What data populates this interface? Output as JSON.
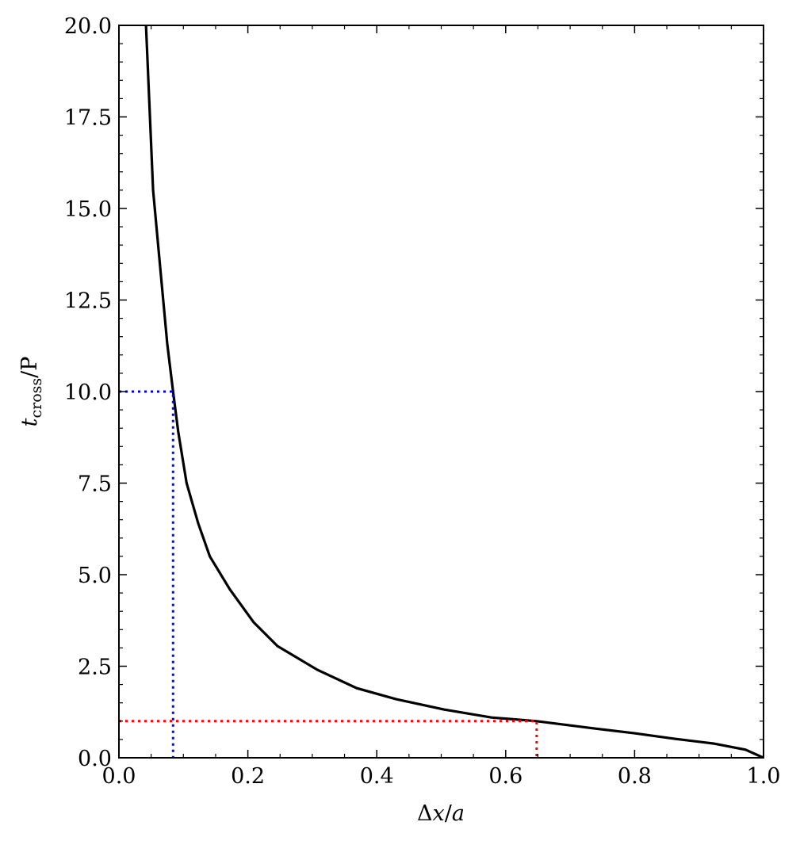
{
  "chart_data": {
    "type": "line",
    "xlabel": [
      "Δ",
      "x",
      "/",
      "a"
    ],
    "ylabel": [
      "t",
      "cross",
      "/P"
    ],
    "series": [
      {
        "color": "#000000",
        "linestyle": "solid",
        "x": [
          0.042,
          0.053,
          0.065,
          0.075,
          0.084,
          0.092,
          0.105,
          0.123,
          0.141,
          0.172,
          0.209,
          0.246,
          0.308,
          0.369,
          0.43,
          0.504,
          0.578,
          0.648,
          0.738,
          0.8,
          0.861,
          0.922,
          0.972,
          1.0
        ],
        "values": [
          20,
          15.5,
          13.2,
          11.3,
          10,
          8.9,
          7.5,
          6.4,
          5.5,
          4.6,
          3.7,
          3.05,
          2.4,
          1.9,
          1.6,
          1.32,
          1.1,
          1.0,
          0.8,
          0.67,
          0.52,
          0.39,
          0.22,
          0
        ]
      },
      {
        "color": "#0000ff",
        "linestyle": "dotted",
        "x": [
          0,
          0.084,
          0.084
        ],
        "values": [
          10,
          10,
          0
        ]
      },
      {
        "color": "#ff0000",
        "linestyle": "dotted",
        "x": [
          0,
          0.648,
          0.648
        ],
        "values": [
          1,
          1,
          0
        ]
      }
    ],
    "xlim": [
      0,
      1
    ],
    "ylim": [
      0,
      20
    ],
    "xticks": [
      {
        "value": 0,
        "label": "0.0"
      },
      0.2,
      0.4,
      0.6,
      0.8,
      {
        "value": 1,
        "label": "1.0"
      }
    ],
    "yticks": [
      {
        "value": 0,
        "label": "0.0"
      },
      2.5,
      {
        "value": 5,
        "label": "5.0"
      },
      7.5,
      {
        "value": 10,
        "label": "10.0"
      },
      12.5,
      {
        "value": 15,
        "label": "15.0"
      },
      17.5,
      {
        "value": 20,
        "label": "20.0"
      }
    ],
    "xminorticks": [
      0.05,
      0.1,
      0.15,
      0.25,
      0.3,
      0.35,
      0.45,
      0.5,
      0.55,
      0.65,
      0.7,
      0.75,
      0.85,
      0.9,
      0.95
    ],
    "yminorticks": [
      0.5,
      1,
      1.5,
      2,
      3,
      3.5,
      4,
      4.5,
      5.5,
      6,
      6.5,
      7,
      8,
      8.5,
      9,
      9.5,
      10.5,
      11,
      11.5,
      12,
      13,
      13.5,
      14,
      14.5,
      15.5,
      16,
      16.5,
      17,
      18,
      18.5,
      19,
      19.5
    ],
    "grid": false
  }
}
